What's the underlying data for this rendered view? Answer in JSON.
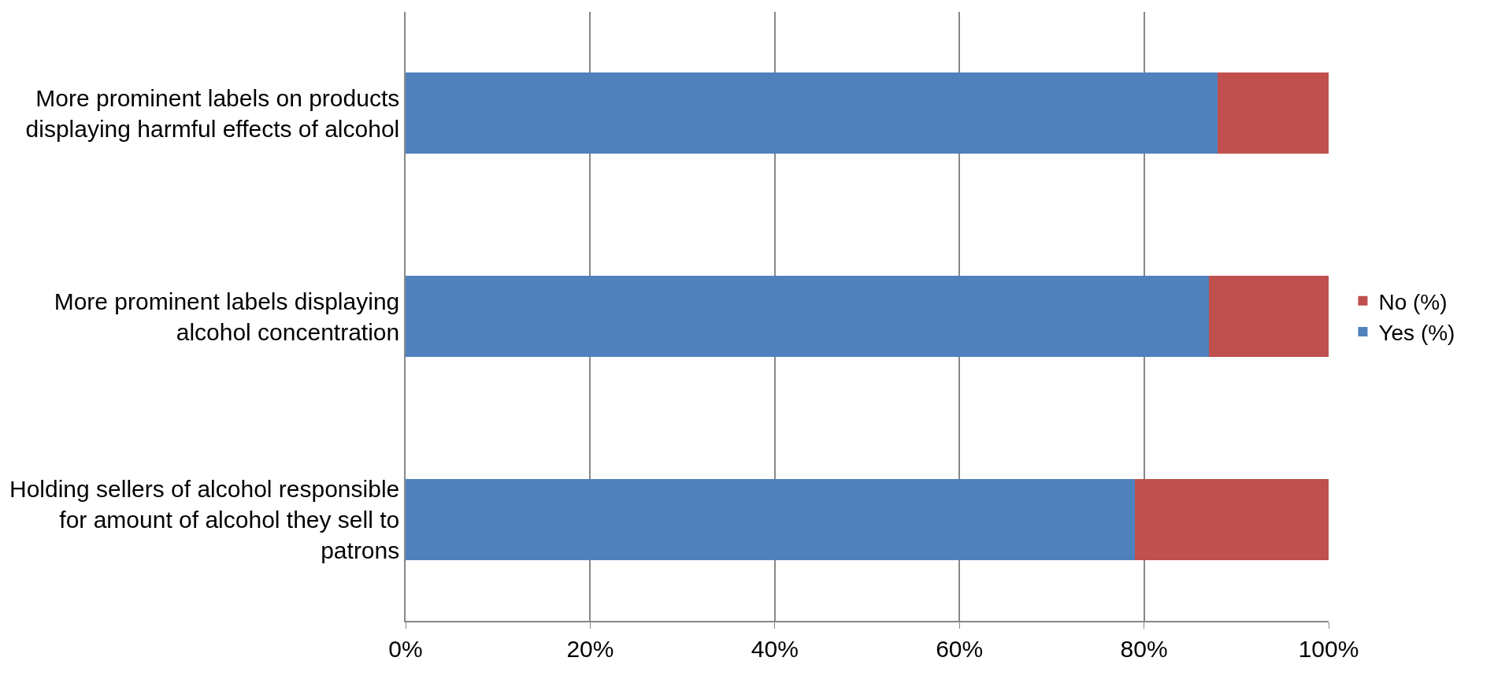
{
  "chart_data": {
    "type": "bar",
    "orientation": "horizontal",
    "stacked": true,
    "categories": [
      "More prominent labels on products displaying harmful effects of alcohol",
      "More prominent labels displaying alcohol concentration",
      "Holding sellers of alcohol responsible for amount of alcohol they sell to patrons"
    ],
    "series": [
      {
        "name": "Yes (%)",
        "color": "#4f81bd",
        "values": [
          88,
          87,
          79
        ]
      },
      {
        "name": "No (%)",
        "color": "#c0504d",
        "values": [
          12,
          13,
          21
        ]
      }
    ],
    "xlim": [
      0,
      100
    ],
    "xticks": [
      {
        "value": 0,
        "label": "0%"
      },
      {
        "value": 20,
        "label": "20%"
      },
      {
        "value": 40,
        "label": "40%"
      },
      {
        "value": 60,
        "label": "60%"
      },
      {
        "value": 80,
        "label": "80%"
      },
      {
        "value": 100,
        "label": "100%"
      }
    ],
    "grid": "x",
    "legend": "right"
  }
}
